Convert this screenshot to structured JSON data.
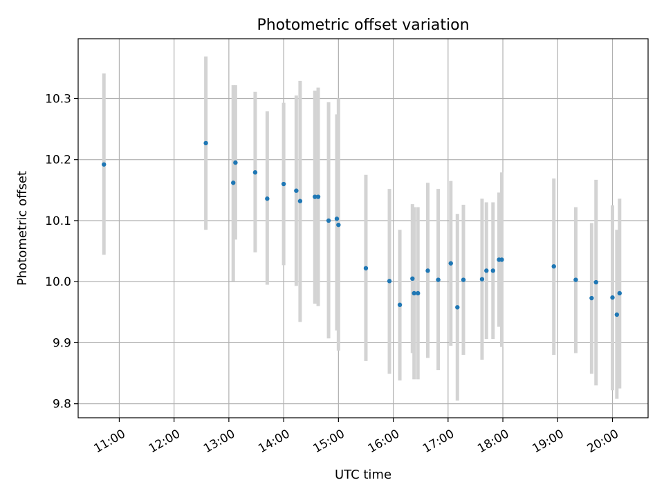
{
  "chart_data": {
    "type": "scatter",
    "title": "Photometric offset variation",
    "xlabel": "UTC time",
    "ylabel": "Photometric offset",
    "x_unit": "hours (UTC)",
    "xlim": [
      10.25,
      20.65
    ],
    "ylim": [
      9.777,
      10.398
    ],
    "x_ticks": [
      {
        "value": 11,
        "label": "11:00"
      },
      {
        "value": 12,
        "label": "12:00"
      },
      {
        "value": 13,
        "label": "13:00"
      },
      {
        "value": 14,
        "label": "14:00"
      },
      {
        "value": 15,
        "label": "15:00"
      },
      {
        "value": 16,
        "label": "16:00"
      },
      {
        "value": 17,
        "label": "17:00"
      },
      {
        "value": 18,
        "label": "18:00"
      },
      {
        "value": 19,
        "label": "19:00"
      },
      {
        "value": 20,
        "label": "20:00"
      }
    ],
    "y_ticks": [
      {
        "value": 9.8,
        "label": "9.8"
      },
      {
        "value": 9.9,
        "label": "9.9"
      },
      {
        "value": 10.0,
        "label": "10.0"
      },
      {
        "value": 10.1,
        "label": "10.1"
      },
      {
        "value": 10.2,
        "label": "10.2"
      },
      {
        "value": 10.3,
        "label": "10.3"
      }
    ],
    "grid": true,
    "marker_color": "#1f77b4",
    "errorbar_color": "#d3d3d3",
    "points": [
      {
        "x": 10.72,
        "y": 10.192,
        "ylo": 10.044,
        "yhi": 10.341
      },
      {
        "x": 12.58,
        "y": 10.227,
        "ylo": 10.085,
        "yhi": 10.369
      },
      {
        "x": 13.08,
        "y": 10.162,
        "ylo": 10.001,
        "yhi": 10.322
      },
      {
        "x": 13.12,
        "y": 10.195,
        "ylo": 10.069,
        "yhi": 10.322
      },
      {
        "x": 13.48,
        "y": 10.179,
        "ylo": 10.048,
        "yhi": 10.311
      },
      {
        "x": 13.7,
        "y": 10.136,
        "ylo": 9.995,
        "yhi": 10.279
      },
      {
        "x": 14.0,
        "y": 10.16,
        "ylo": 10.027,
        "yhi": 10.293
      },
      {
        "x": 14.23,
        "y": 10.149,
        "ylo": 9.993,
        "yhi": 10.305
      },
      {
        "x": 14.3,
        "y": 10.132,
        "ylo": 9.934,
        "yhi": 10.329
      },
      {
        "x": 14.57,
        "y": 10.139,
        "ylo": 9.964,
        "yhi": 10.313
      },
      {
        "x": 14.63,
        "y": 10.139,
        "ylo": 9.96,
        "yhi": 10.318
      },
      {
        "x": 14.82,
        "y": 10.1,
        "ylo": 9.907,
        "yhi": 10.294
      },
      {
        "x": 14.97,
        "y": 10.103,
        "ylo": 9.92,
        "yhi": 10.274
      },
      {
        "x": 15.0,
        "y": 10.093,
        "ylo": 9.887,
        "yhi": 10.3
      },
      {
        "x": 15.5,
        "y": 10.022,
        "ylo": 9.87,
        "yhi": 10.175
      },
      {
        "x": 15.93,
        "y": 10.001,
        "ylo": 9.849,
        "yhi": 10.152
      },
      {
        "x": 16.12,
        "y": 9.962,
        "ylo": 9.838,
        "yhi": 10.085
      },
      {
        "x": 16.35,
        "y": 10.005,
        "ylo": 9.883,
        "yhi": 10.127
      },
      {
        "x": 16.38,
        "y": 9.981,
        "ylo": 9.84,
        "yhi": 10.122
      },
      {
        "x": 16.45,
        "y": 9.981,
        "ylo": 9.84,
        "yhi": 10.122
      },
      {
        "x": 16.63,
        "y": 10.018,
        "ylo": 9.875,
        "yhi": 10.162
      },
      {
        "x": 16.82,
        "y": 10.003,
        "ylo": 9.855,
        "yhi": 10.152
      },
      {
        "x": 17.05,
        "y": 10.03,
        "ylo": 9.895,
        "yhi": 10.165
      },
      {
        "x": 17.17,
        "y": 9.958,
        "ylo": 9.805,
        "yhi": 10.111
      },
      {
        "x": 17.28,
        "y": 10.003,
        "ylo": 9.88,
        "yhi": 10.126
      },
      {
        "x": 17.62,
        "y": 10.004,
        "ylo": 9.872,
        "yhi": 10.136
      },
      {
        "x": 17.7,
        "y": 10.018,
        "ylo": 9.906,
        "yhi": 10.13
      },
      {
        "x": 17.82,
        "y": 10.018,
        "ylo": 9.906,
        "yhi": 10.13
      },
      {
        "x": 17.93,
        "y": 10.036,
        "ylo": 9.926,
        "yhi": 10.146
      },
      {
        "x": 17.98,
        "y": 10.036,
        "ylo": 9.893,
        "yhi": 10.179
      },
      {
        "x": 18.93,
        "y": 10.025,
        "ylo": 9.88,
        "yhi": 10.169
      },
      {
        "x": 19.33,
        "y": 10.003,
        "ylo": 9.883,
        "yhi": 10.122
      },
      {
        "x": 19.62,
        "y": 9.973,
        "ylo": 9.849,
        "yhi": 10.096
      },
      {
        "x": 19.7,
        "y": 9.999,
        "ylo": 9.83,
        "yhi": 10.167
      },
      {
        "x": 20.0,
        "y": 9.974,
        "ylo": 9.822,
        "yhi": 10.125
      },
      {
        "x": 20.08,
        "y": 9.946,
        "ylo": 9.808,
        "yhi": 10.085
      },
      {
        "x": 20.13,
        "y": 9.981,
        "ylo": 9.825,
        "yhi": 10.136
      }
    ]
  }
}
